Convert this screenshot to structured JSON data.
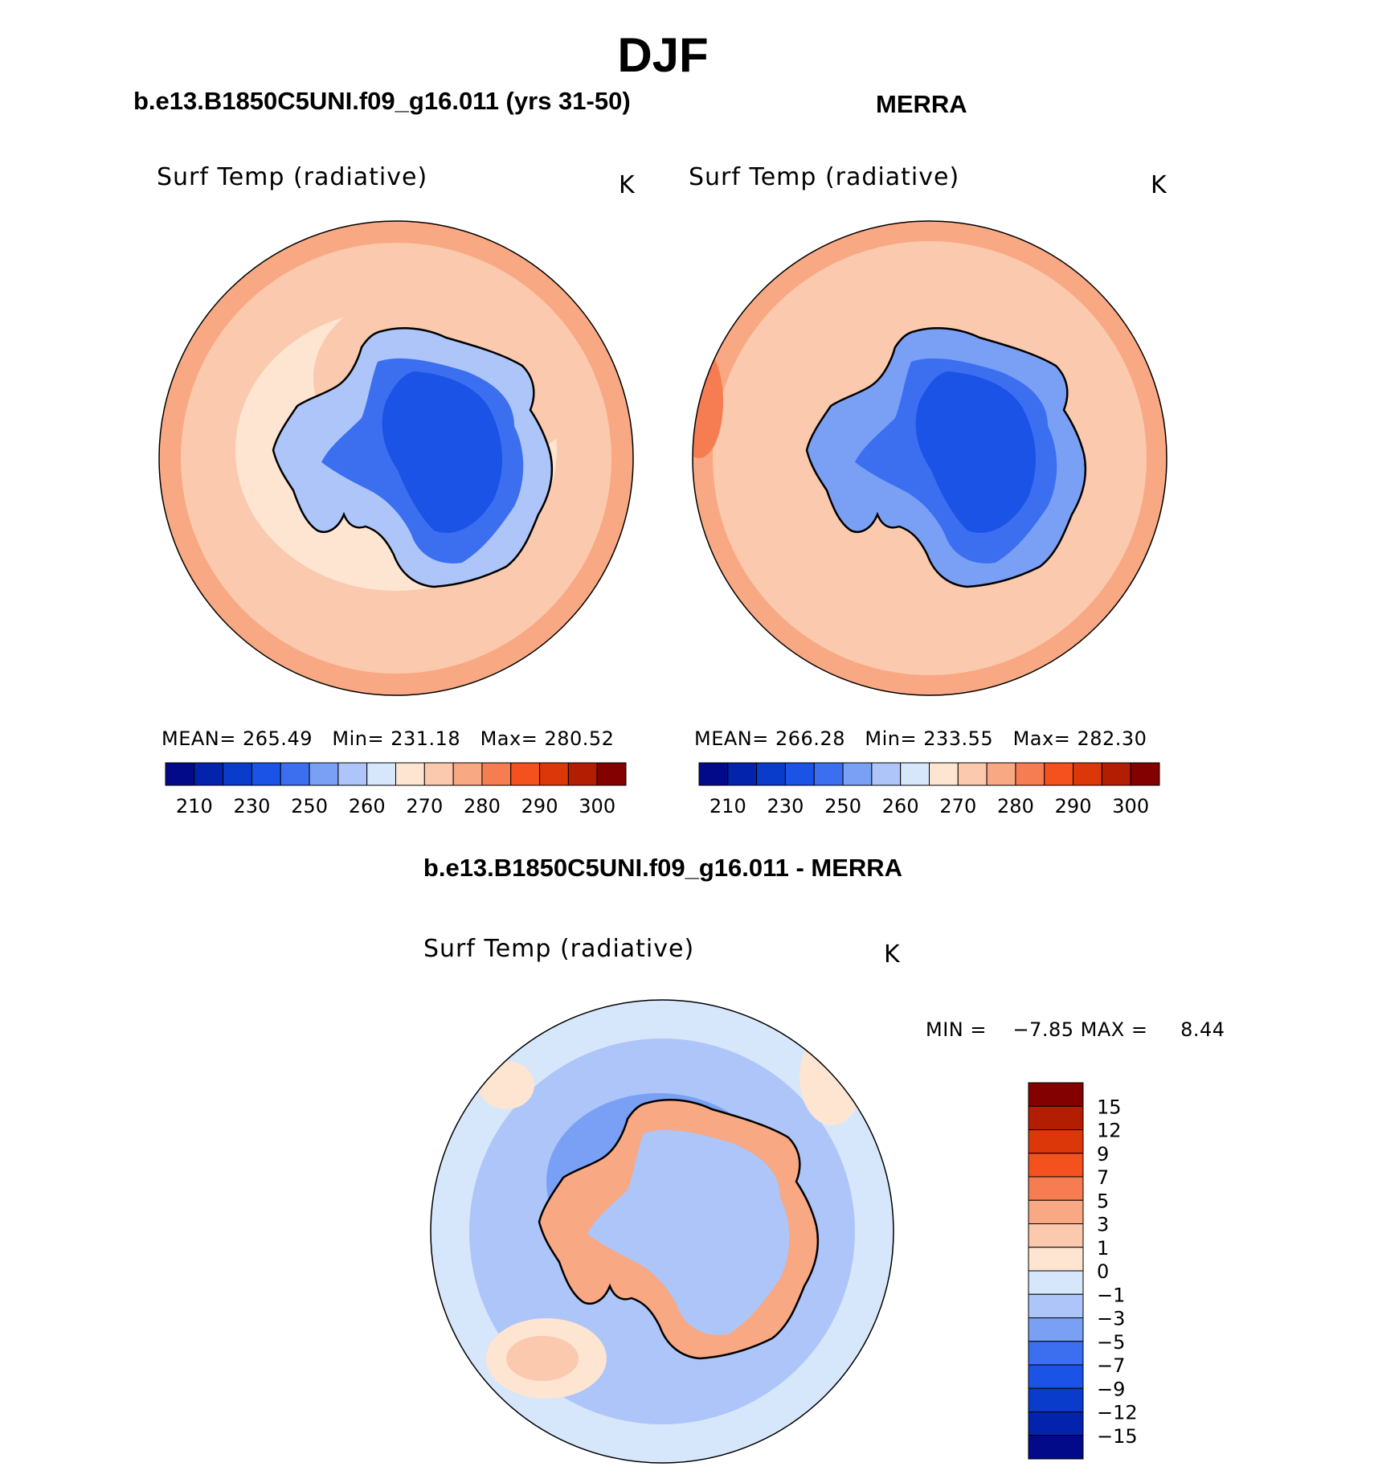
{
  "figure": {
    "title": "DJF",
    "left_panel_title": "b.e13.B1850C5UNI.f09_g16.011 (yrs 31-50)",
    "right_panel_title": "MERRA",
    "diff_panel_title": "b.e13.B1850C5UNI.f09_g16.011 - MERRA"
  },
  "panels": {
    "model": {
      "variable": "Surf Temp (radiative)",
      "units": "K",
      "stats": {
        "mean_label": "MEAN=",
        "mean": "265.49",
        "min_label": "Min=",
        "min": "231.18",
        "max_label": "Max=",
        "max": "280.52"
      }
    },
    "obs": {
      "variable": "Surf Temp (radiative)",
      "units": "K",
      "stats": {
        "mean_label": "MEAN=",
        "mean": "266.28",
        "min_label": "Min=",
        "min": "233.55",
        "max_label": "Max=",
        "max": "282.30"
      }
    },
    "diff": {
      "variable": "Surf Temp (radiative)",
      "units": "K",
      "stats_line": "MIN =    −7.85 MAX =     8.44"
    }
  },
  "colorbars": {
    "absolute": {
      "labels": [
        "210",
        "230",
        "250",
        "260",
        "270",
        "280",
        "290",
        "300"
      ],
      "colors": [
        "#030a8a",
        "#0423ad",
        "#0a3ccc",
        "#1a53e6",
        "#3c6ff0",
        "#79a0f5",
        "#adc5f8",
        "#d6e6fb",
        "#fde5d2",
        "#fbc9ad",
        "#f8a883",
        "#f67c52",
        "#f4511f",
        "#dc3708",
        "#b31d02",
        "#830200"
      ]
    },
    "difference": {
      "labels": [
        "15",
        "12",
        "9",
        "7",
        "5",
        "3",
        "1",
        "0",
        "−1",
        "−3",
        "−5",
        "−7",
        "−9",
        "−12",
        "−15"
      ],
      "colors_top_to_bottom": [
        "#830200",
        "#b31d02",
        "#dc3708",
        "#f4511f",
        "#f67c52",
        "#f8a883",
        "#fbc9ad",
        "#fde5d2",
        "#d6e6fb",
        "#adc5f8",
        "#79a0f5",
        "#3c6ff0",
        "#1a53e6",
        "#0a3ccc",
        "#0423ad",
        "#030a8a"
      ]
    }
  }
}
